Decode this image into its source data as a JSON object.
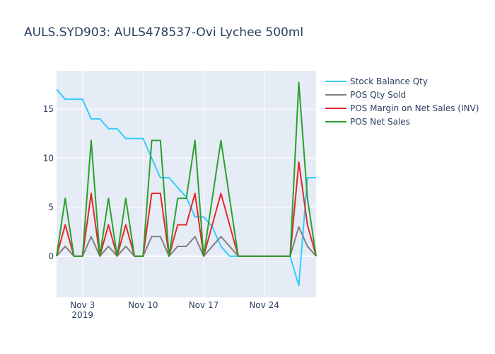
{
  "chart_data": {
    "type": "line",
    "title": "AULS.SYD903:  AULS478537-Ovi Lychee 500ml",
    "xlabel": "",
    "ylabel": "",
    "x_start": "2019-10-31",
    "x": [
      "2019-10-31",
      "2019-11-01",
      "2019-11-02",
      "2019-11-03",
      "2019-11-04",
      "2019-11-05",
      "2019-11-06",
      "2019-11-07",
      "2019-11-08",
      "2019-11-09",
      "2019-11-10",
      "2019-11-11",
      "2019-11-12",
      "2019-11-13",
      "2019-11-14",
      "2019-11-15",
      "2019-11-16",
      "2019-11-17",
      "2019-11-18",
      "2019-11-19",
      "2019-11-20",
      "2019-11-21",
      "2019-11-22",
      "2019-11-23",
      "2019-11-24",
      "2019-11-25",
      "2019-11-26",
      "2019-11-27",
      "2019-11-28",
      "2019-11-29",
      "2019-11-30"
    ],
    "x_ticks": [
      {
        "date": "2019-11-03",
        "label": "Nov 3",
        "sublabel": "2019"
      },
      {
        "date": "2019-11-10",
        "label": "Nov 10",
        "sublabel": ""
      },
      {
        "date": "2019-11-17",
        "label": "Nov 17",
        "sublabel": ""
      },
      {
        "date": "2019-11-24",
        "label": "Nov 24",
        "sublabel": ""
      }
    ],
    "y_ticks": [
      0,
      5,
      10,
      15
    ],
    "ylim": [
      -4.2,
      18.9
    ],
    "grid": true,
    "legend_position": "right",
    "series": [
      {
        "name": "Stock Balance Qty",
        "color": "#33ccff",
        "values": [
          17,
          16,
          16,
          16,
          14,
          14,
          13,
          13,
          12,
          12,
          12,
          10,
          8,
          8,
          7,
          6,
          4,
          4,
          3,
          1,
          0,
          0,
          0,
          0,
          0,
          0,
          0,
          0,
          -3,
          8,
          8
        ]
      },
      {
        "name": "POS Qty Sold",
        "color": "#808080",
        "values": [
          0,
          1,
          0,
          0,
          2,
          0,
          1,
          0,
          1,
          0,
          0,
          2,
          2,
          0,
          1,
          1,
          2,
          0,
          1,
          2,
          1,
          0,
          0,
          0,
          0,
          0,
          0,
          0,
          3,
          1,
          0
        ]
      },
      {
        "name": "POS Margin on Net Sales (INV)",
        "color": "#e6262b",
        "values": [
          0,
          3.2,
          0,
          0,
          6.4,
          0,
          3.2,
          0,
          3.2,
          0,
          0,
          6.4,
          6.4,
          0,
          3.2,
          3.2,
          6.4,
          0,
          3.2,
          6.4,
          3.2,
          0,
          0,
          0,
          0,
          0,
          0,
          0,
          9.6,
          3.2,
          0
        ]
      },
      {
        "name": "POS Net Sales",
        "color": "#2ca02c",
        "values": [
          0,
          5.9,
          0,
          0,
          11.8,
          0,
          5.9,
          0,
          5.9,
          0,
          0,
          11.8,
          11.8,
          0,
          5.9,
          5.9,
          11.8,
          0,
          5.9,
          11.8,
          5.9,
          0,
          0,
          0,
          0,
          0,
          0,
          0,
          17.7,
          5.9,
          0
        ]
      }
    ]
  }
}
